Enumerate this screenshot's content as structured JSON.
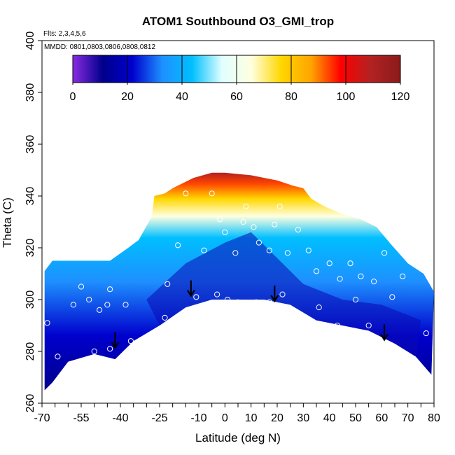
{
  "chart_data": {
    "type": "heatmap",
    "title": "ATOM1 Southbound O3_GMI_trop",
    "annotations": {
      "flights": "Flts: 2,3,4,5,6",
      "dates": "MMDD: 0801,0803,0806,0808,0812"
    },
    "xlabel": "Latitude (deg N)",
    "ylabel": "Theta (C)",
    "xlim": [
      -70,
      80
    ],
    "ylim": [
      260,
      400
    ],
    "x_tick_labels": [
      "-70",
      "-55",
      "-40",
      "-25",
      "-10",
      "0",
      "10",
      "20",
      "30",
      "40",
      "50",
      "60",
      "70",
      "80"
    ],
    "x_tick_values": [
      -70,
      -55,
      -40,
      -25,
      -10,
      0,
      10,
      20,
      30,
      40,
      50,
      60,
      70,
      80
    ],
    "y_tick_labels": [
      "260",
      "280",
      "300",
      "320",
      "340",
      "360",
      "380",
      "400"
    ],
    "y_tick_values": [
      260,
      280,
      300,
      320,
      340,
      360,
      380,
      400
    ],
    "colorbar": {
      "range": [
        0,
        120
      ],
      "tick_labels": [
        "0",
        "20",
        "40",
        "60",
        "80",
        "100",
        "120"
      ],
      "tick_values": [
        0,
        20,
        40,
        60,
        80,
        100,
        120
      ],
      "colors": [
        "#8a2be2",
        "#00008b",
        "#0000cd",
        "#1e90ff",
        "#00bfff",
        "#e0ffff",
        "#ffffe0",
        "#ffd700",
        "#ffa500",
        "#ff0000",
        "#b22222",
        "#8b1a1a"
      ]
    },
    "field": {
      "surface": [
        [
          -69,
          265
        ],
        [
          -66,
          268
        ],
        [
          -60,
          276
        ],
        [
          -50,
          279
        ],
        [
          -42,
          277
        ],
        [
          -35,
          284
        ],
        [
          -25,
          290
        ],
        [
          -15,
          297
        ],
        [
          -5,
          300
        ],
        [
          5,
          300
        ],
        [
          15,
          300
        ],
        [
          25,
          298
        ],
        [
          35,
          292
        ],
        [
          45,
          290
        ],
        [
          55,
          288
        ],
        [
          65,
          283
        ],
        [
          73,
          278
        ],
        [
          79,
          271
        ]
      ],
      "top": [
        [
          -69,
          311
        ],
        [
          -66,
          315
        ],
        [
          -55,
          315
        ],
        [
          -44,
          315
        ],
        [
          -37,
          320
        ],
        [
          -33,
          323
        ],
        [
          -28,
          332
        ],
        [
          -27,
          340
        ],
        [
          -23,
          341
        ],
        [
          -20,
          343
        ],
        [
          -12,
          347
        ],
        [
          -5,
          349
        ],
        [
          0,
          349
        ],
        [
          10,
          348
        ],
        [
          20,
          346
        ],
        [
          26,
          344
        ],
        [
          30,
          343
        ],
        [
          33,
          339
        ],
        [
          38,
          336
        ],
        [
          45,
          333
        ],
        [
          52,
          331
        ],
        [
          58,
          328
        ],
        [
          63,
          322
        ],
        [
          70,
          314
        ],
        [
          76,
          310
        ],
        [
          80,
          303
        ]
      ]
    },
    "arrows": [
      {
        "lat": -42,
        "theta": 282
      },
      {
        "lat": -13,
        "theta": 302
      },
      {
        "lat": 19,
        "theta": 300
      },
      {
        "lat": 61,
        "theta": 285
      }
    ]
  }
}
